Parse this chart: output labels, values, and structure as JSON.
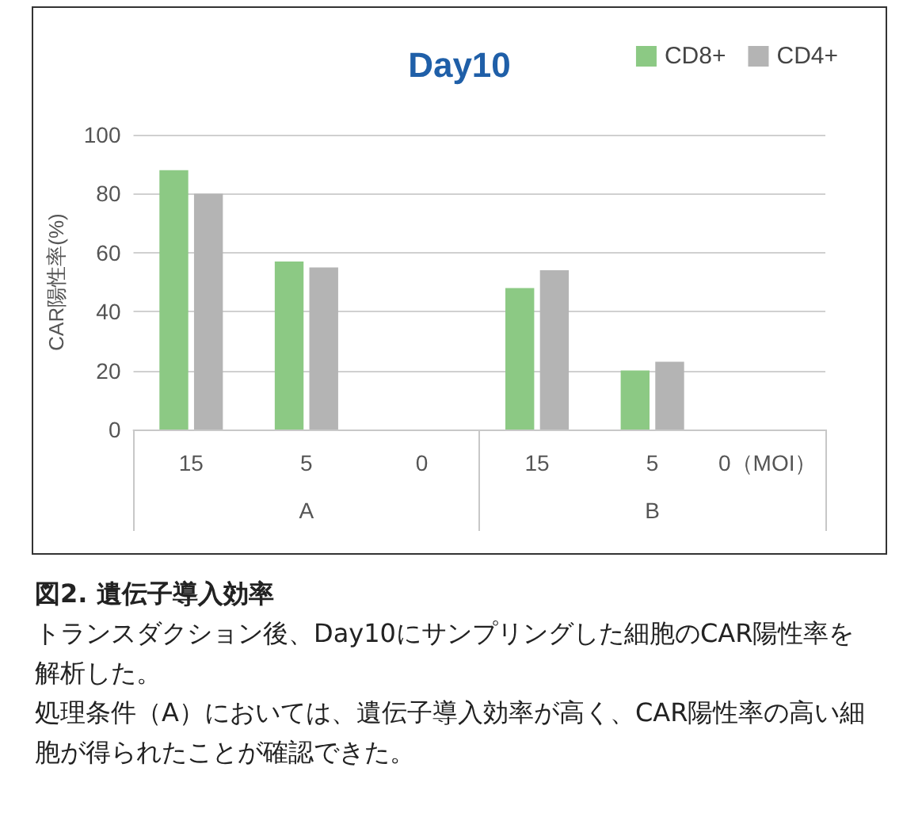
{
  "chart_data": {
    "type": "bar",
    "title": "Day10",
    "ylabel": "CAR陽性率(%)",
    "categories": [
      "15",
      "5",
      "0",
      "15",
      "5",
      "0（MOI）"
    ],
    "series": [
      {
        "name": "CD8+",
        "color": "#8cc984",
        "values": [
          88,
          57,
          0,
          48,
          20,
          0
        ]
      },
      {
        "name": "CD4+",
        "color": "#b4b4b4",
        "values": [
          80,
          55,
          0,
          54,
          23,
          0
        ]
      }
    ],
    "ylim": [
      0,
      100
    ],
    "yticks": [
      0,
      20,
      40,
      60,
      80,
      100
    ],
    "grid": "y",
    "legend": "top right",
    "annotations": [
      "A",
      "B",
      "図2. 遺伝子導入効率",
      "トランスダクション後、Day10にサンプリングした細胞のCAR陽性率を解析した。",
      "処理条件（A）においては、遺伝子導入効率が高く、CAR陽性率の高い細胞が得られたことが確認できた。"
    ]
  }
}
